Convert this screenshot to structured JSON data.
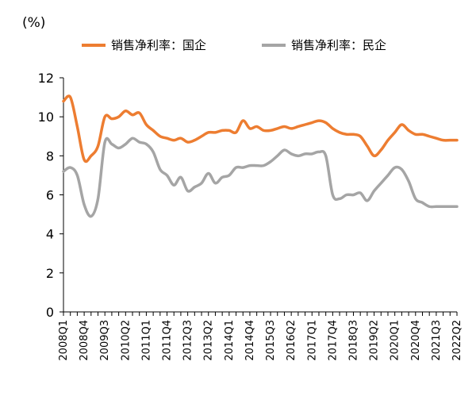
{
  "chart_data": {
    "type": "line",
    "unit_label": "(%)",
    "ylim": [
      0,
      12
    ],
    "y_ticks": [
      0,
      2,
      4,
      6,
      8,
      10,
      12
    ],
    "x_tick_labels": [
      "2008Q1",
      "2008Q4",
      "2009Q3",
      "2010Q2",
      "2011Q1",
      "2011Q4",
      "2012Q3",
      "2013Q2",
      "2014Q1",
      "2014Q4",
      "2015Q3",
      "2016Q2",
      "2017Q1",
      "2017Q4",
      "2018Q3",
      "2019Q2",
      "2020Q1",
      "2020Q4",
      "2021Q3",
      "2022Q2"
    ],
    "x": [
      "2008Q1",
      "2008Q2",
      "2008Q3",
      "2008Q4",
      "2009Q1",
      "2009Q2",
      "2009Q3",
      "2009Q4",
      "2010Q1",
      "2010Q2",
      "2010Q3",
      "2010Q4",
      "2011Q1",
      "2011Q2",
      "2011Q3",
      "2011Q4",
      "2012Q1",
      "2012Q2",
      "2012Q3",
      "2012Q4",
      "2013Q1",
      "2013Q2",
      "2013Q3",
      "2013Q4",
      "2014Q1",
      "2014Q2",
      "2014Q3",
      "2014Q4",
      "2015Q1",
      "2015Q2",
      "2015Q3",
      "2015Q4",
      "2016Q1",
      "2016Q2",
      "2016Q3",
      "2016Q4",
      "2017Q1",
      "2017Q2",
      "2017Q3",
      "2017Q4",
      "2018Q1",
      "2018Q2",
      "2018Q3",
      "2018Q4",
      "2019Q1",
      "2019Q2",
      "2019Q3",
      "2019Q4",
      "2020Q1",
      "2020Q2",
      "2020Q3",
      "2020Q4",
      "2021Q1",
      "2021Q2",
      "2021Q3",
      "2021Q4",
      "2022Q1",
      "2022Q2"
    ],
    "grid": false,
    "legend_position": "top",
    "series": [
      {
        "name": "销售净利率：国企",
        "color": "#ED7D31",
        "values": [
          10.8,
          11.0,
          9.5,
          7.8,
          8.0,
          8.5,
          10.0,
          9.9,
          10.0,
          10.3,
          10.1,
          10.2,
          9.6,
          9.3,
          9.0,
          8.9,
          8.8,
          8.9,
          8.7,
          8.8,
          9.0,
          9.2,
          9.2,
          9.3,
          9.3,
          9.2,
          9.8,
          9.4,
          9.5,
          9.3,
          9.3,
          9.4,
          9.5,
          9.4,
          9.5,
          9.6,
          9.7,
          9.8,
          9.7,
          9.4,
          9.2,
          9.1,
          9.1,
          9.0,
          8.5,
          8.0,
          8.3,
          8.8,
          9.2,
          9.6,
          9.3,
          9.1,
          9.1,
          9.0,
          8.9,
          8.8,
          8.8,
          8.8
        ],
        "plot_x": [
          0,
          1,
          2,
          3,
          4,
          5,
          6,
          7,
          8,
          9,
          10,
          11,
          12,
          13,
          14,
          15,
          16,
          17,
          18,
          19,
          20,
          21,
          22,
          23,
          24,
          25,
          26,
          27,
          28,
          29,
          30,
          31,
          32,
          33,
          34,
          35,
          36,
          37,
          38,
          39,
          40,
          41,
          42,
          43,
          44,
          45,
          46,
          47,
          48,
          49,
          50,
          51,
          52,
          53,
          54,
          55,
          56,
          57
        ]
      },
      {
        "name": "销售净利率：民企",
        "color": "#A5A5A5",
        "values": [
          7.2,
          7.4,
          7.0,
          5.5,
          4.9,
          5.8,
          8.7,
          8.6,
          8.4,
          8.6,
          8.9,
          8.7,
          8.6,
          8.2,
          7.3,
          7.0,
          6.5,
          6.9,
          6.2,
          6.4,
          6.6,
          7.1,
          6.6,
          6.9,
          7.0,
          7.4,
          7.4,
          7.5,
          7.5,
          7.5,
          7.7,
          8.0,
          8.3,
          8.1,
          8.0,
          8.1,
          8.1,
          8.2,
          8.0,
          6.0,
          5.8,
          6.0,
          6.0,
          6.1,
          5.7,
          6.2,
          6.6,
          7.0,
          7.4,
          7.3,
          6.7,
          5.8,
          5.6,
          5.4,
          5.4,
          5.4,
          5.4,
          5.4
        ],
        "plot_x": [
          0,
          1,
          2,
          3,
          4,
          5,
          6,
          7,
          8,
          9,
          10,
          11,
          12,
          13,
          14,
          15,
          16,
          17,
          18,
          19,
          20,
          21,
          22,
          23,
          24,
          25,
          26,
          27,
          28,
          29,
          30,
          31,
          32,
          33,
          34,
          35,
          36,
          37,
          38,
          39,
          40,
          41,
          42,
          43,
          44,
          45,
          46,
          47,
          48,
          49,
          50,
          51,
          52,
          53,
          54,
          55,
          56,
          57
        ]
      }
    ]
  }
}
